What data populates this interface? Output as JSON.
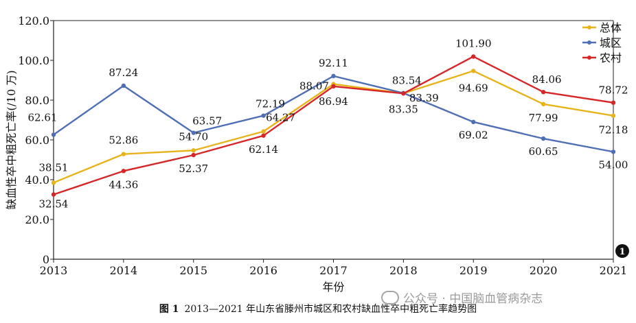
{
  "chart_data": {
    "type": "line",
    "x": [
      "2013",
      "2014",
      "2015",
      "2016",
      "2017",
      "2018",
      "2019",
      "2020",
      "2021"
    ],
    "xlabel": "年份",
    "ylabel": "缺血性卒中粗死亡率(/10 万)",
    "ylim": [
      0,
      120
    ],
    "yticks": [
      "0",
      "20.0",
      "40.0",
      "60.0",
      "80.0",
      "100.0",
      "120.0"
    ],
    "grid": false,
    "legend_position": "top-right",
    "series": [
      {
        "name": "总体",
        "color": "#e8b31a",
        "values": [
          38.51,
          52.86,
          54.7,
          64.27,
          88.07,
          83.39,
          94.69,
          77.99,
          72.18
        ]
      },
      {
        "name": "城区",
        "color": "#4f6fb5",
        "values": [
          62.61,
          87.24,
          63.57,
          72.19,
          92.11,
          83.54,
          69.02,
          60.65,
          54.0
        ]
      },
      {
        "name": "农村",
        "color": "#d62728",
        "values": [
          32.54,
          44.36,
          52.37,
          62.14,
          86.94,
          83.35,
          101.9,
          84.06,
          78.72
        ]
      }
    ],
    "data_labels": [
      {
        "text": "62.61"
      },
      {
        "text": "87.24"
      },
      {
        "text": "63.57"
      },
      {
        "text": "72.19"
      },
      {
        "text": "92.11"
      },
      {
        "text": "83.54"
      },
      {
        "text": "101.90"
      },
      {
        "text": "84.06"
      },
      {
        "text": "78.72"
      },
      {
        "text": "38.51"
      },
      {
        "text": "52.86"
      },
      {
        "text": "54.70"
      },
      {
        "text": "64.27"
      },
      {
        "text": "88.07"
      },
      {
        "text": "83.39"
      },
      {
        "text": "94.69"
      },
      {
        "text": "77.99"
      },
      {
        "text": "72.18"
      },
      {
        "text": "32.54"
      },
      {
        "text": "44.36"
      },
      {
        "text": "52.37"
      },
      {
        "text": "62.14"
      },
      {
        "text": "86.94"
      },
      {
        "text": "83.35"
      },
      {
        "text": "69.02"
      },
      {
        "text": "60.65"
      },
      {
        "text": "54.00"
      }
    ],
    "panel_label": "1"
  },
  "caption": {
    "prefix": "图 1",
    "text": "2013—2021 年山东省滕州市城区和农村缺血性卒中粗死亡率趋势图"
  },
  "watermark": {
    "text": "公众号 · 中国脑血管病杂志"
  }
}
